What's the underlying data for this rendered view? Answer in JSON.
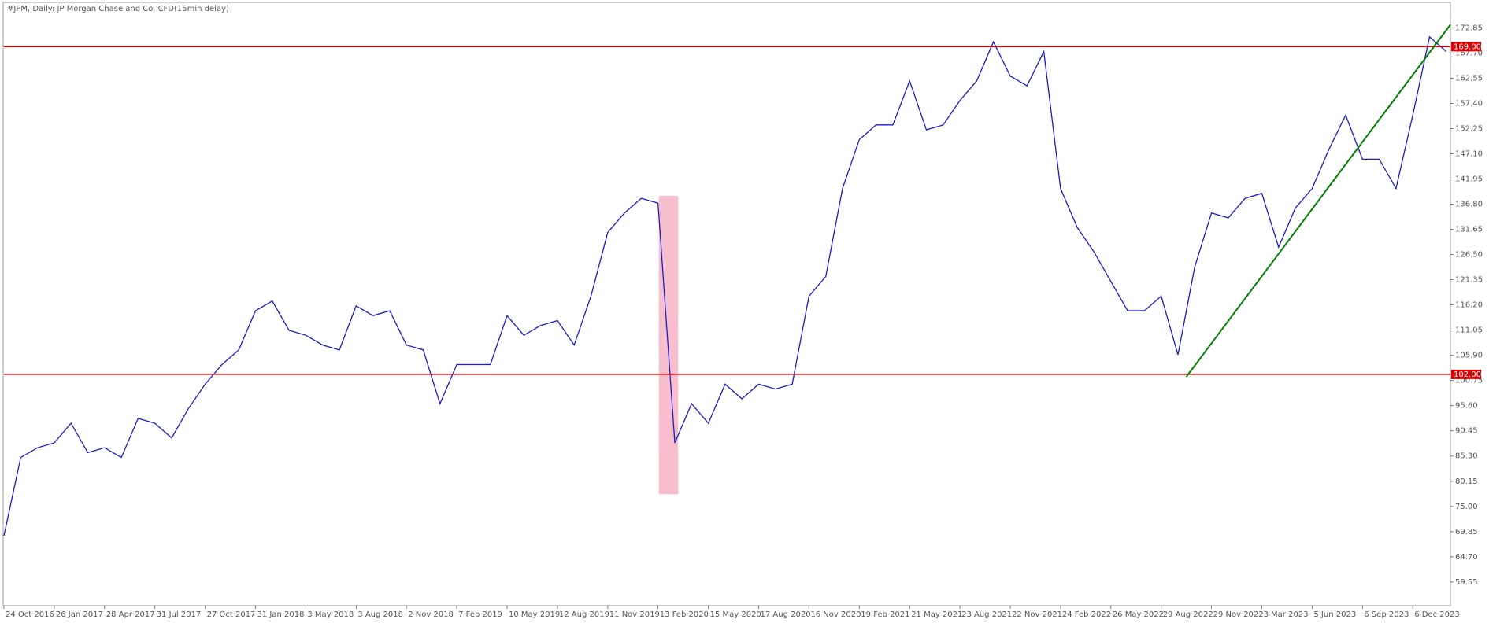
{
  "chart_data": {
    "type": "line",
    "title": "#JPM, Daily:  JP Morgan Chase and Co. CFD(15min delay)",
    "categories": [
      "24 Oct 2016",
      null,
      null,
      "26 Jan 2017",
      null,
      null,
      "28 Apr 2017",
      null,
      null,
      "31 Jul 2017",
      null,
      null,
      "27 Oct 2017",
      null,
      null,
      "31 Jan 2018",
      null,
      null,
      "3 May 2018",
      null,
      null,
      "3 Aug 2018",
      null,
      null,
      "2 Nov 2018",
      null,
      null,
      "7 Feb 2019",
      null,
      null,
      "10 May 2019",
      null,
      null,
      "12 Aug 2019",
      null,
      null,
      "11 Nov 2019",
      null,
      null,
      "13 Feb 2020",
      null,
      null,
      "15 May 2020",
      null,
      null,
      "17 Aug 2020",
      null,
      null,
      "16 Nov 2020",
      null,
      null,
      "19 Feb 2021",
      null,
      null,
      "21 May 2021",
      null,
      null,
      "23 Aug 2021",
      null,
      null,
      "22 Nov 2021",
      null,
      null,
      "24 Feb 2022",
      null,
      null,
      "26 May 2022",
      null,
      null,
      "29 Aug 2022",
      null,
      null,
      "29 Nov 2022",
      null,
      null,
      "3 Mar 2023",
      null,
      null,
      "5 Jun 2023",
      null,
      null,
      "6 Sep 2023",
      null,
      null,
      "6 Dec 2023",
      null,
      null
    ],
    "series": [
      {
        "name": "JPM",
        "color": "#1a1acc",
        "values": [
          69,
          85,
          87,
          88,
          92,
          86,
          87,
          85,
          93,
          92,
          89,
          95,
          100,
          104,
          107,
          115,
          117,
          111,
          110,
          108,
          107,
          116,
          114,
          115,
          108,
          107,
          96,
          104,
          104,
          104,
          114,
          110,
          112,
          113,
          108,
          118,
          131,
          135,
          138,
          137,
          88,
          96,
          92,
          100,
          97,
          100,
          99,
          100,
          118,
          122,
          140,
          150,
          153,
          153,
          162,
          152,
          153,
          158,
          162,
          170,
          163,
          161,
          168,
          140,
          132,
          127,
          121,
          115,
          115,
          118,
          106,
          124,
          135,
          134,
          138,
          139,
          128,
          136,
          140,
          148,
          155,
          146,
          146,
          140,
          155,
          171,
          168
        ]
      }
    ],
    "ylim": [
      54.7,
      177.9
    ],
    "yticks": [
      {
        "value": 59.55,
        "label": "59.55"
      },
      {
        "value": 64.7,
        "label": "64.70"
      },
      69.85,
      {
        "value": 75,
        "label": "75.00"
      },
      80.15,
      {
        "value": 85.3,
        "label": "85.30"
      },
      90.45,
      {
        "value": 95.6,
        "label": "95.60"
      },
      100.75,
      {
        "value": 105.9,
        "label": "105.90"
      },
      111.05,
      {
        "value": 116.2,
        "label": "116.20"
      },
      121.35,
      {
        "value": 126.5,
        "label": "126.50"
      },
      131.65,
      {
        "value": 136.8,
        "label": "136.80"
      },
      141.95,
      {
        "value": 147.1,
        "label": "147.10"
      },
      152.25,
      {
        "value": 157.4,
        "label": "157.40"
      },
      162.55,
      {
        "value": 167.7,
        "label": "167.70"
      },
      172.85
    ],
    "levels": [
      {
        "value": 169,
        "label": "169.00"
      },
      {
        "value": 102,
        "label": "102.00"
      }
    ],
    "level_color": "#dd0000",
    "trendline": {
      "values": [
        101.5,
        173.5
      ],
      "color": "#008000"
    },
    "highlight": {
      "values": [
        138.5,
        77.5
      ],
      "color": "#f6b8c8"
    }
  }
}
